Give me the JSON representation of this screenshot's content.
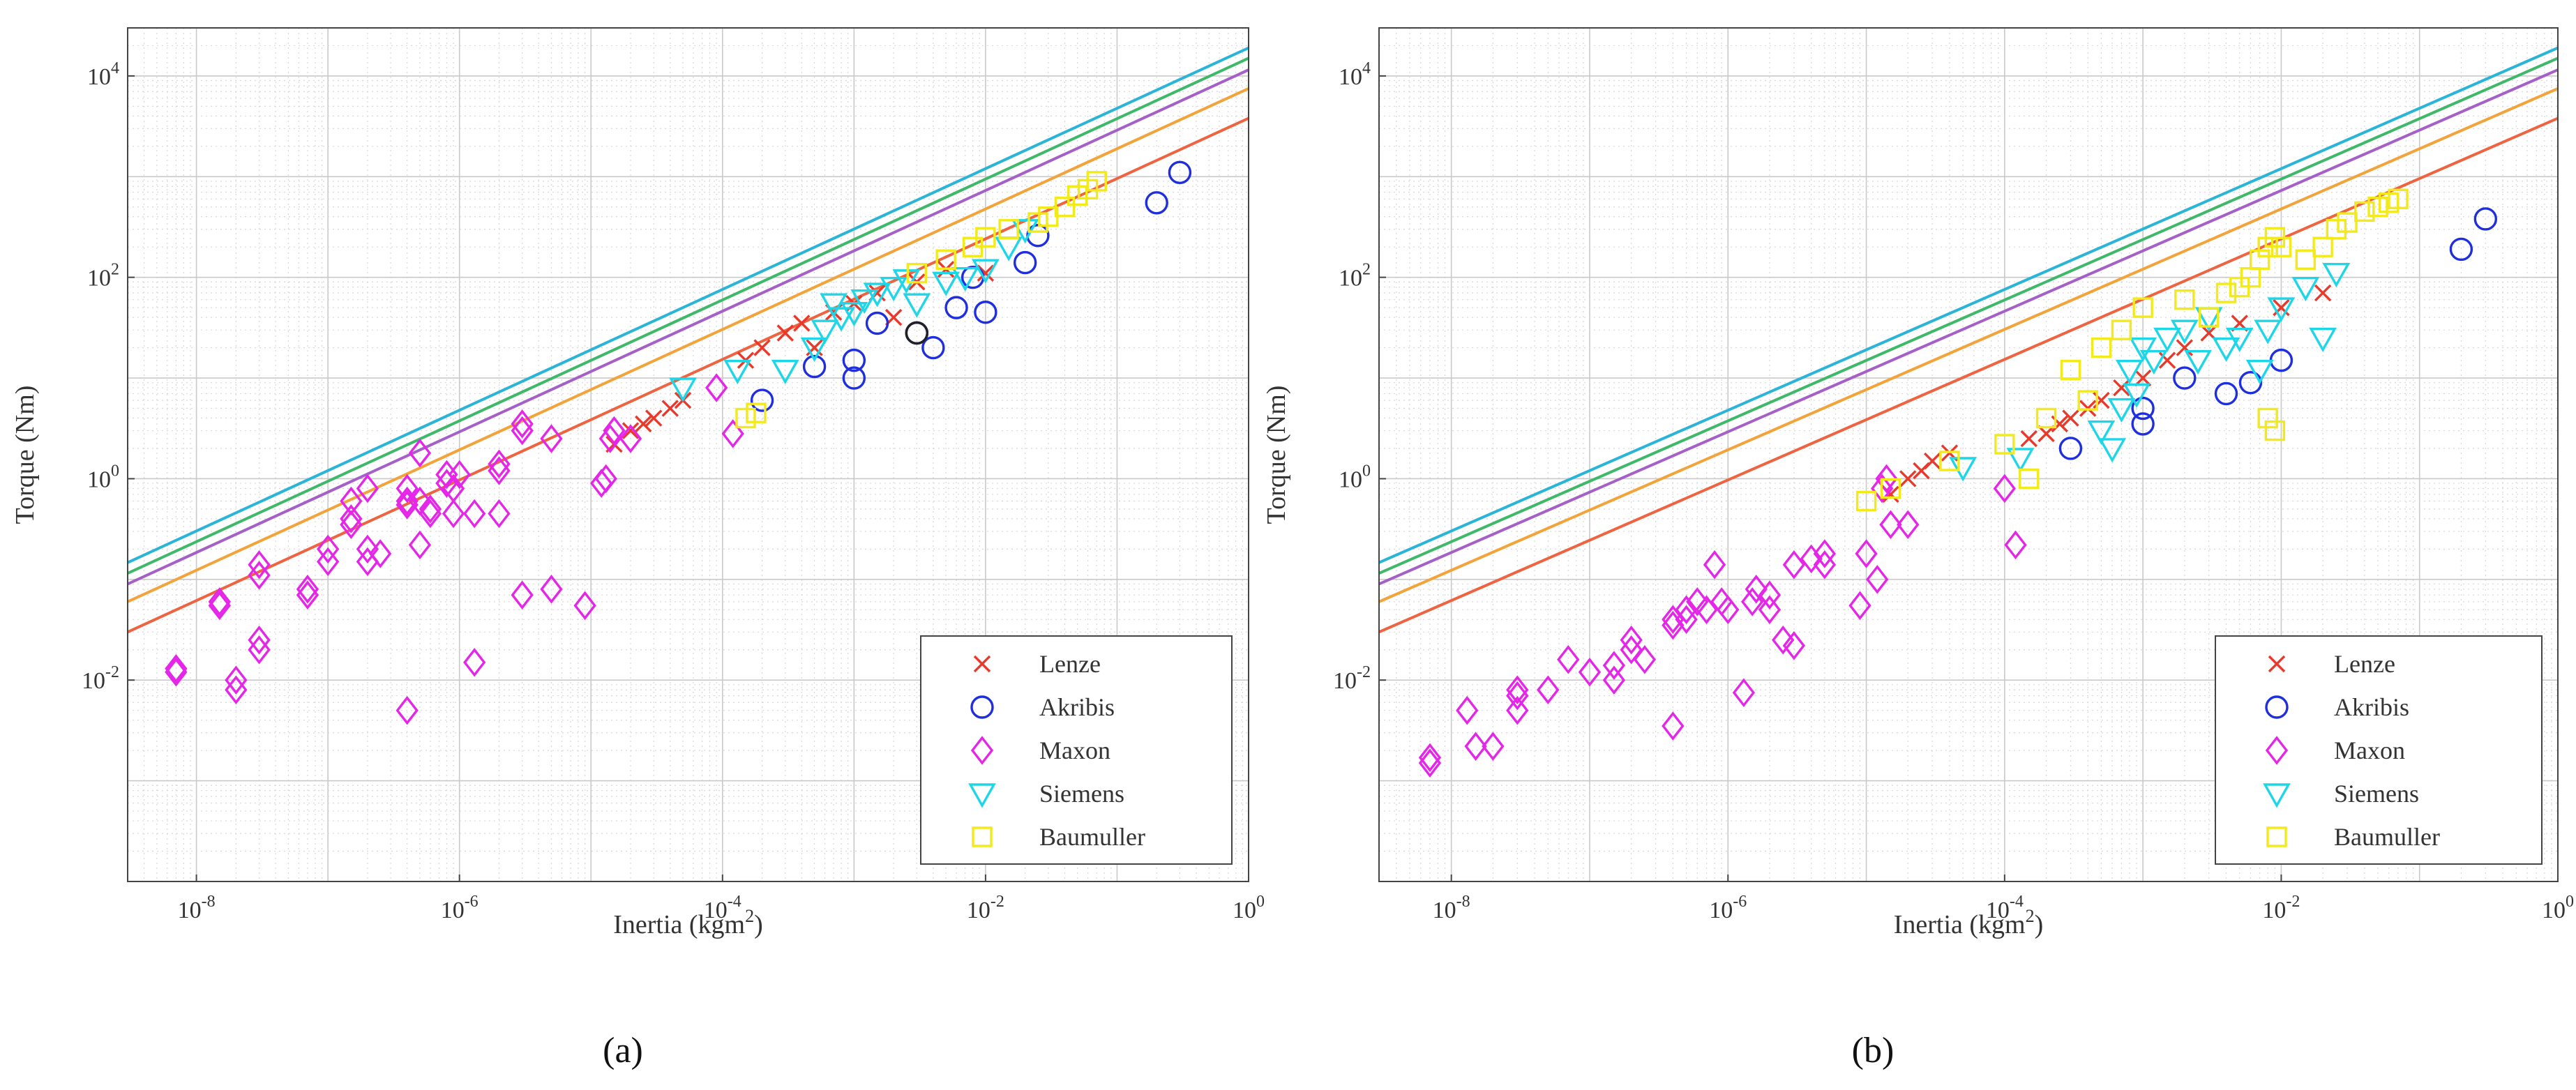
{
  "chart_data": [
    {
      "panel_label": "(a)",
      "type": "scatter",
      "xlabel_base": "Inertia (kgm",
      "xlabel_exp": "2",
      "xlabel_end": ")",
      "ylabel": "Torque (Nm)",
      "x_scale": "log",
      "y_scale": "log",
      "xlim": [
        3e-09,
        1
      ],
      "ylim": [
        0.0001,
        30000
      ],
      "x_ticks": [
        {
          "value": 1e-08,
          "base": "10",
          "exp": "-8"
        },
        {
          "value": 1e-06,
          "base": "10",
          "exp": "-6"
        },
        {
          "value": 0.0001,
          "base": "10",
          "exp": "-4"
        },
        {
          "value": 0.01,
          "base": "10",
          "exp": "-2"
        },
        {
          "value": 1,
          "base": "10",
          "exp": "0"
        }
      ],
      "y_ticks": [
        {
          "value": 0.01,
          "base": "10",
          "exp": "-2"
        },
        {
          "value": 1,
          "base": "10",
          "exp": "0"
        },
        {
          "value": 100.0,
          "base": "10",
          "exp": "2"
        },
        {
          "value": 10000.0,
          "base": "10",
          "exp": "4"
        }
      ],
      "grid": true,
      "legend_placement": "bottom-right",
      "reference_lines": [
        {
          "color": "#2ab4d8",
          "x": [
            3e-09,
            1
          ],
          "y": [
            0.147,
            19000
          ]
        },
        {
          "color": "#3fb86a",
          "x": [
            3e-09,
            1
          ],
          "y": [
            0.115,
            15000
          ]
        },
        {
          "color": "#a560c8",
          "x": [
            3e-09,
            1
          ],
          "y": [
            0.09,
            11500
          ]
        },
        {
          "color": "#f2a33a",
          "x": [
            3e-09,
            1
          ],
          "y": [
            0.06,
            7500
          ]
        },
        {
          "color": "#ee6440",
          "x": [
            3e-09,
            1
          ],
          "y": [
            0.03,
            3800
          ]
        }
      ],
      "series": [
        {
          "name": "Lenze",
          "marker": "x",
          "color": "#e8392a",
          "x": [
            1.5e-05,
            2e-05,
            2.5e-05,
            3e-05,
            4e-05,
            5e-05,
            0.00015,
            0.0002,
            0.0003,
            0.0004,
            0.0005,
            0.0007,
            0.001,
            0.0015,
            0.002,
            0.003,
            0.005,
            0.01
          ],
          "y": [
            2.2,
            3,
            3.5,
            4,
            5,
            6,
            15,
            20,
            28,
            35,
            20,
            45,
            55,
            70,
            40,
            90,
            120,
            110
          ]
        },
        {
          "name": "Akribis",
          "marker": "circle",
          "color": "#1f2fe0",
          "x": [
            0.3,
            0.2,
            0.0002,
            0.0005,
            0.001,
            0.001,
            0.0015,
            0.003,
            0.004,
            0.006,
            0.008,
            0.01,
            0.02,
            0.025,
            0.003
          ],
          "y": [
            1100,
            550,
            6,
            13,
            10,
            15,
            35,
            28,
            20,
            50,
            100,
            45,
            140,
            260,
            28
          ]
        },
        {
          "name": "Maxon",
          "marker": "diamond",
          "color": "#e526e8",
          "x": [
            7e-09,
            7e-09,
            1.5e-08,
            1.5e-08,
            2e-08,
            2e-08,
            3e-08,
            3e-08,
            3e-08,
            3e-08,
            7e-08,
            7e-08,
            1e-07,
            1e-07,
            1.5e-07,
            1.5e-07,
            1.5e-07,
            2e-07,
            2e-07,
            2e-07,
            2.5e-07,
            4e-07,
            4e-07,
            4e-07,
            4e-07,
            5e-07,
            5e-07,
            5e-07,
            6e-07,
            6e-07,
            8e-07,
            8e-07,
            9e-07,
            9e-07,
            1e-06,
            1.3e-06,
            1.3e-06,
            2e-06,
            2e-06,
            2e-06,
            3e-06,
            3e-06,
            3e-06,
            5e-06,
            5e-06,
            9e-06,
            1.2e-05,
            1.3e-05,
            1.4e-05,
            1.5e-05,
            2e-05,
            9e-05,
            0.00012
          ],
          "y": [
            0.012,
            0.013,
            0.06,
            0.055,
            0.01,
            0.008,
            0.14,
            0.11,
            0.025,
            0.02,
            0.08,
            0.07,
            0.2,
            0.15,
            0.6,
            0.4,
            0.35,
            0.8,
            0.2,
            0.15,
            0.18,
            0.8,
            0.6,
            0.55,
            0.005,
            1.8,
            0.6,
            0.22,
            0.5,
            0.45,
            1.1,
            0.9,
            0.8,
            0.45,
            1.1,
            0.45,
            0.015,
            1.4,
            1.2,
            0.45,
            3.5,
            3,
            0.07,
            2.5,
            0.08,
            0.055,
            0.9,
            1,
            2.5,
            3,
            2.5,
            8,
            2.8
          ]
        },
        {
          "name": "Siemens",
          "marker": "triangle-down",
          "color": "#1fd6e8",
          "x": [
            5e-05,
            0.00013,
            0.0003,
            0.0005,
            0.0006,
            0.0007,
            0.0008,
            0.001,
            0.0012,
            0.0015,
            0.002,
            0.0025,
            0.003,
            0.005,
            0.007,
            0.01,
            0.015,
            0.02
          ],
          "y": [
            8,
            12,
            12,
            20,
            30,
            55,
            40,
            45,
            60,
            70,
            80,
            95,
            55,
            90,
            100,
            120,
            200,
            300
          ]
        },
        {
          "name": "Baumuller",
          "marker": "square",
          "color": "#f2ea1a",
          "x": [
            0.00015,
            0.00018,
            0.003,
            0.005,
            0.008,
            0.01,
            0.015,
            0.025,
            0.03,
            0.04,
            0.05,
            0.06,
            0.07
          ],
          "y": [
            4,
            4.5,
            110,
            150,
            200,
            250,
            300,
            350,
            400,
            500,
            650,
            750,
            900
          ]
        },
        {
          "name": "",
          "marker": "circle",
          "color": "#222222",
          "x": [
            0.003
          ],
          "y": [
            28
          ]
        }
      ]
    },
    {
      "panel_label": "(b)",
      "type": "scatter",
      "xlabel_base": "Inertia (kgm",
      "xlabel_exp": "2",
      "xlabel_end": ")",
      "ylabel": "Torque (Nm)",
      "x_scale": "log",
      "y_scale": "log",
      "xlim": [
        3e-09,
        1
      ],
      "ylim": [
        0.0001,
        30000
      ],
      "x_ticks": [
        {
          "value": 1e-08,
          "base": "10",
          "exp": "-8"
        },
        {
          "value": 1e-06,
          "base": "10",
          "exp": "-6"
        },
        {
          "value": 0.0001,
          "base": "10",
          "exp": "-4"
        },
        {
          "value": 0.01,
          "base": "10",
          "exp": "-2"
        },
        {
          "value": 1,
          "base": "10",
          "exp": "0"
        }
      ],
      "y_ticks": [
        {
          "value": 0.01,
          "base": "10",
          "exp": "-2"
        },
        {
          "value": 1,
          "base": "10",
          "exp": "0"
        },
        {
          "value": 100.0,
          "base": "10",
          "exp": "2"
        },
        {
          "value": 10000.0,
          "base": "10",
          "exp": "4"
        }
      ],
      "grid": true,
      "legend_placement": "bottom-right",
      "reference_lines": [
        {
          "color": "#2ab4d8",
          "x": [
            3e-09,
            1
          ],
          "y": [
            0.147,
            19000
          ]
        },
        {
          "color": "#3fb86a",
          "x": [
            3e-09,
            1
          ],
          "y": [
            0.115,
            15000
          ]
        },
        {
          "color": "#a560c8",
          "x": [
            3e-09,
            1
          ],
          "y": [
            0.09,
            11500
          ]
        },
        {
          "color": "#f2a33a",
          "x": [
            3e-09,
            1
          ],
          "y": [
            0.06,
            7500
          ]
        },
        {
          "color": "#ee6440",
          "x": [
            3e-09,
            1
          ],
          "y": [
            0.03,
            3800
          ]
        }
      ],
      "series": [
        {
          "name": "Lenze",
          "marker": "x",
          "color": "#e8392a",
          "x": [
            1.5e-05,
            2e-05,
            2.5e-05,
            3e-05,
            4e-05,
            0.00015,
            0.0002,
            0.00025,
            0.0003,
            0.0004,
            0.0005,
            0.0007,
            0.001,
            0.0015,
            0.002,
            0.003,
            0.005,
            0.01,
            0.02
          ],
          "y": [
            0.7,
            1,
            1.2,
            1.5,
            1.8,
            2.5,
            2.8,
            3.5,
            4,
            5,
            6,
            8,
            10,
            15,
            20,
            28,
            35,
            50,
            70
          ]
        },
        {
          "name": "Akribis",
          "marker": "circle",
          "color": "#1f2fe0",
          "x": [
            0.3,
            0.2,
            0.0003,
            0.001,
            0.001,
            0.002,
            0.004,
            0.006,
            0.01
          ],
          "y": [
            380,
            190,
            2,
            5,
            3.5,
            10,
            7,
            9,
            15
          ]
        },
        {
          "name": "Maxon",
          "marker": "diamond",
          "color": "#e526e8",
          "x": [
            7e-09,
            7e-09,
            1.3e-08,
            1.5e-08,
            2e-08,
            3e-08,
            3e-08,
            3e-08,
            5e-08,
            7e-08,
            1e-07,
            1.5e-07,
            1.5e-07,
            2e-07,
            2e-07,
            2.5e-07,
            4e-07,
            4e-07,
            4e-07,
            5e-07,
            5e-07,
            6e-07,
            7e-07,
            8e-07,
            9e-07,
            1e-06,
            1.3e-06,
            1.5e-06,
            1.6e-06,
            2e-06,
            2e-06,
            2.5e-06,
            3e-06,
            3e-06,
            4e-06,
            5e-06,
            5e-06,
            9e-06,
            1e-05,
            1.2e-05,
            1.3e-05,
            1.4e-05,
            1.5e-05,
            2e-05,
            0.0001,
            0.00012
          ],
          "y": [
            0.0017,
            0.0015,
            0.005,
            0.0022,
            0.0022,
            0.005,
            0.007,
            0.008,
            0.008,
            0.016,
            0.012,
            0.01,
            0.014,
            0.02,
            0.025,
            0.016,
            0.04,
            0.035,
            0.0035,
            0.05,
            0.04,
            0.06,
            0.05,
            0.14,
            0.06,
            0.05,
            0.0075,
            0.06,
            0.08,
            0.05,
            0.07,
            0.025,
            0.14,
            0.022,
            0.16,
            0.18,
            0.14,
            0.055,
            0.18,
            0.1,
            0.8,
            1,
            0.35,
            0.35,
            0.8,
            0.22
          ]
        },
        {
          "name": "Siemens",
          "marker": "triangle-down",
          "color": "#1fd6e8",
          "x": [
            5e-05,
            0.00013,
            0.0005,
            0.0006,
            0.0007,
            0.0008,
            0.0009,
            0.001,
            0.0012,
            0.0015,
            0.002,
            0.0025,
            0.003,
            0.004,
            0.005,
            0.007,
            0.008,
            0.01,
            0.015,
            0.02,
            0.025
          ],
          "y": [
            1.3,
            1.6,
            3,
            2,
            5,
            12,
            7,
            20,
            15,
            25,
            30,
            15,
            40,
            20,
            25,
            12,
            30,
            50,
            80,
            25,
            110
          ]
        },
        {
          "name": "Baumuller",
          "marker": "square",
          "color": "#f2ea1a",
          "x": [
            1e-05,
            1.5e-05,
            4e-05,
            0.0001,
            0.00015,
            0.0002,
            0.0003,
            0.0004,
            0.0005,
            0.0007,
            0.001,
            0.002,
            0.003,
            0.004,
            0.005,
            0.006,
            0.007,
            0.008,
            0.009,
            0.01,
            0.015,
            0.02,
            0.025,
            0.03,
            0.04,
            0.05,
            0.06,
            0.07,
            0.008,
            0.009
          ],
          "y": [
            0.6,
            0.8,
            1.5,
            2.2,
            1,
            4,
            12,
            6,
            20,
            30,
            50,
            60,
            40,
            70,
            80,
            100,
            150,
            200,
            250,
            200,
            150,
            200,
            300,
            350,
            450,
            500,
            550,
            600,
            4,
            3
          ]
        }
      ]
    }
  ]
}
